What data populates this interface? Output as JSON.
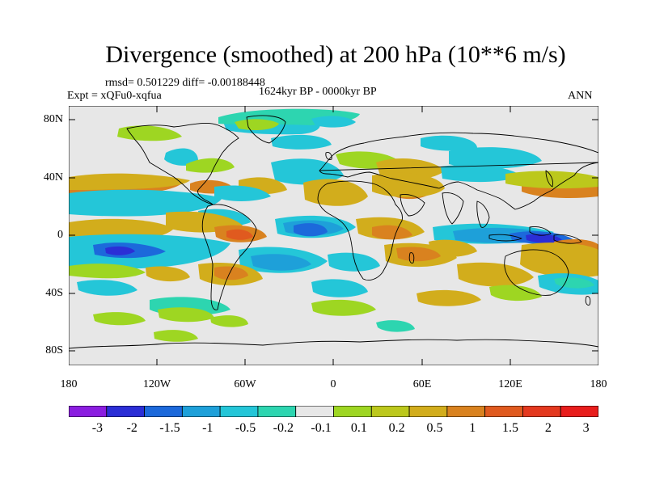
{
  "header": {
    "title": "Divergence (smoothed) at 200 hPa (10**6 m/s)",
    "stats": "rmsd= 0.501229 diff= -0.00188448",
    "experiment": "Expt = xQFu0-xqfua",
    "period": "1624kyr BP - 0000kyr BP",
    "season": "ANN"
  },
  "map": {
    "lat_ticks": [
      "80N",
      "40N",
      "0",
      "40S",
      "80S"
    ],
    "lon_ticks": [
      "180",
      "120W",
      "60W",
      "0",
      "60E",
      "120E",
      "180"
    ],
    "background": "#e7e7e7"
  },
  "colorbar": {
    "colors": [
      "#8b1de0",
      "#2b2ed6",
      "#1c69db",
      "#1ea0d9",
      "#24c6d8",
      "#2dd5b0",
      "#e7e7e7",
      "#9ed622",
      "#bcc81c",
      "#d2ad1c",
      "#d9821f",
      "#e05a1f",
      "#e4391f",
      "#e81d1c"
    ],
    "labels": [
      "-3",
      "-2",
      "-1.5",
      "-1",
      "-0.5",
      "-0.2",
      "-0.1",
      "0.1",
      "0.2",
      "0.5",
      "1",
      "1.5",
      "2",
      "3"
    ]
  }
}
